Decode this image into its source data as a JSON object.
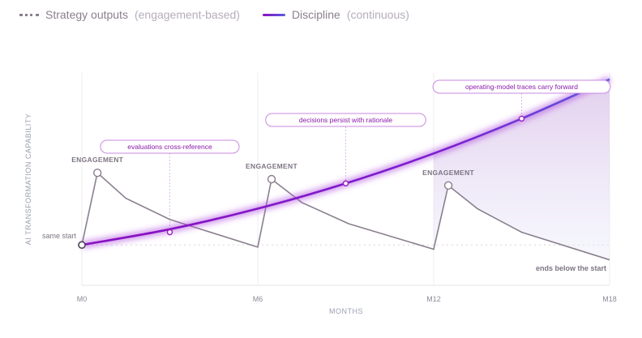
{
  "legend": {
    "strategy_label": "Strategy outputs",
    "strategy_note": "(engagement-based)",
    "discipline_label": "Discipline",
    "discipline_note": "(continuous)"
  },
  "chart_data": {
    "type": "line",
    "xlabel": "MONTHS",
    "ylabel": "AI TRANSFORMATION CAPABILITY",
    "xlim": [
      0,
      18
    ],
    "ylim": [
      0,
      100
    ],
    "x_ticks": [
      {
        "value": 0,
        "label": "M0"
      },
      {
        "value": 6,
        "label": "M6"
      },
      {
        "value": 12,
        "label": "M12"
      },
      {
        "value": 18,
        "label": "M18"
      }
    ],
    "baseline": 19,
    "series": [
      {
        "name": "Strategy outputs",
        "color": "#8a7f8e",
        "points": [
          [
            0,
            19
          ],
          [
            0.53,
            53
          ],
          [
            1.5,
            41
          ],
          [
            3,
            31
          ],
          [
            6,
            18
          ],
          [
            6.47,
            50
          ],
          [
            7.5,
            39
          ],
          [
            9.1,
            29
          ],
          [
            12,
            17
          ],
          [
            12.5,
            47
          ],
          [
            13.5,
            36
          ],
          [
            15,
            25
          ],
          [
            18,
            12
          ]
        ]
      },
      {
        "name": "Discipline",
        "color_start": "#8a0fbf",
        "color_end": "#5a5de0",
        "points": [
          [
            0,
            19
          ],
          [
            3,
            26.4
          ],
          [
            6,
            36.1
          ],
          [
            9,
            48
          ],
          [
            12,
            62.1
          ],
          [
            15,
            78.5
          ],
          [
            18,
            97
          ]
        ]
      }
    ],
    "annotations": [
      {
        "text": "evaluations cross-reference",
        "x": 3,
        "y": 25
      },
      {
        "text": "decisions persist with rationale",
        "x": 9,
        "y": 48
      },
      {
        "text": "operating-model traces carry forward",
        "x": 15,
        "y": 78.5
      }
    ],
    "peak_labels": [
      {
        "text": "ENGAGEMENT",
        "x": 0.53,
        "y": 53
      },
      {
        "text": "ENGAGEMENT",
        "x": 6.47,
        "y": 50
      },
      {
        "text": "ENGAGEMENT",
        "x": 12.5,
        "y": 47
      }
    ],
    "start_label": "same start",
    "end_label": "ends below the start",
    "grid": true
  }
}
